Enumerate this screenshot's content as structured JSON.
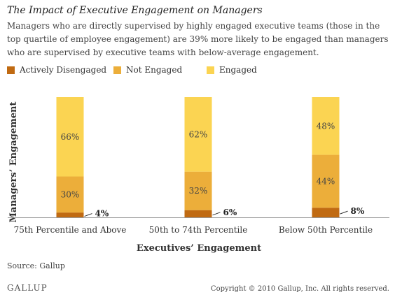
{
  "title": "The Impact of Executive Engagement on Managers",
  "subtitle": "Managers who are directly supervised by highly engaged executive teams (those in the top quartile of employee engagement) are 39% more likely to be engaged than managers who are supervised by executive teams with below-average engagement.",
  "colors": {
    "actively_disengaged": "#C06A12",
    "not_engaged": "#ECAE3A",
    "engaged": "#FBD452",
    "axis": "#9a9a9a",
    "text": "#333333"
  },
  "chart_data": {
    "type": "bar",
    "stacked": true,
    "categories": [
      "75th Percentile and Above",
      "50th to 74th Percentile",
      "Below 50th Percentile"
    ],
    "series": [
      {
        "name": "Actively Disengaged",
        "values": [
          4,
          6,
          8
        ]
      },
      {
        "name": "Not Engaged",
        "values": [
          30,
          32,
          44
        ]
      },
      {
        "name": "Engaged",
        "values": [
          66,
          62,
          48
        ]
      }
    ],
    "labels": [
      [
        "4%",
        "30%",
        "66%"
      ],
      [
        "6%",
        "32%",
        "62%"
      ],
      [
        "8%",
        "44%",
        "48%"
      ]
    ],
    "xlabel": "Executives’ Engagement",
    "ylabel": "Managers’ Engagement",
    "ylim": [
      0,
      100
    ],
    "legend_position": "top",
    "grid": false
  },
  "source": "Source: Gallup",
  "logo": "GALLUP",
  "copyright": "Copyright © 2010 Gallup, Inc. All rights reserved."
}
